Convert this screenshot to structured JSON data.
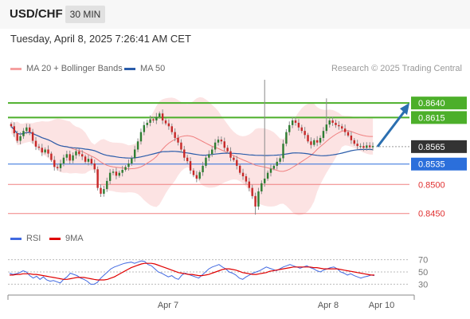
{
  "header": {
    "symbol": "USD/CHF",
    "timeframe": "30 MIN"
  },
  "datetime": "Tuesday, April 8, 2025 7:26:41 AM CET",
  "legend": {
    "ma20": {
      "label": "MA 20 + Bollinger Bands",
      "color": "#f08080"
    },
    "ma50": {
      "label": "MA 50",
      "color": "#2a5caa"
    },
    "rsi": {
      "label": "RSI",
      "color": "#4169e1"
    },
    "ma9": {
      "label": "9MA",
      "color": "#e00000"
    }
  },
  "credit": "Research © 2025 Trading Central",
  "chart_data": [
    {
      "type": "candlestick",
      "ylim": [
        0.844,
        0.868
      ],
      "x_labels": [
        "Apr 7",
        "Apr 8",
        "Apr 10"
      ],
      "levels": [
        {
          "value": 0.864,
          "label": "0.8640",
          "color": "#4caf2a",
          "kind": "resistance"
        },
        {
          "value": 0.8615,
          "label": "0.8615",
          "color": "#4caf2a",
          "kind": "resistance"
        },
        {
          "value": 0.8565,
          "label": "0.8565",
          "color": "#333333",
          "kind": "current"
        },
        {
          "value": 0.8535,
          "label": "0.8535",
          "color": "#2b6fdb",
          "kind": "pivot"
        },
        {
          "value": 0.85,
          "label": "0.8500",
          "color": "#e03030",
          "kind": "support"
        },
        {
          "value": 0.845,
          "label": "0.8450",
          "color": "#e03030",
          "kind": "support"
        }
      ],
      "projection": {
        "from": 0.8565,
        "to": 0.864
      },
      "close": [
        0.86,
        0.8588,
        0.8575,
        0.8583,
        0.8592,
        0.8598,
        0.859,
        0.8575,
        0.8565,
        0.8563,
        0.8555,
        0.856,
        0.8553,
        0.8542,
        0.853,
        0.8528,
        0.8536,
        0.8546,
        0.8552,
        0.8541,
        0.855,
        0.8557,
        0.8552,
        0.8548,
        0.8539,
        0.8544,
        0.8536,
        0.8526,
        0.8494,
        0.8484,
        0.8492,
        0.8506,
        0.852,
        0.8522,
        0.8515,
        0.852,
        0.8525,
        0.853,
        0.8536,
        0.8545,
        0.856,
        0.8574,
        0.859,
        0.8602,
        0.8606,
        0.8612,
        0.861,
        0.8616,
        0.8622,
        0.861,
        0.8605,
        0.86,
        0.859,
        0.858,
        0.8572,
        0.856,
        0.8546,
        0.854,
        0.8524,
        0.8516,
        0.851,
        0.8521,
        0.8532,
        0.8546,
        0.8552,
        0.856,
        0.8572,
        0.8577,
        0.8574,
        0.8563,
        0.8557,
        0.8546,
        0.8542,
        0.8532,
        0.852,
        0.8514,
        0.8505,
        0.8494,
        0.848,
        0.8462,
        0.8488,
        0.8502,
        0.851,
        0.852,
        0.8527,
        0.8532,
        0.8539,
        0.8545,
        0.857,
        0.859,
        0.8602,
        0.861,
        0.8606,
        0.8598,
        0.8592,
        0.8585,
        0.8574,
        0.8568,
        0.8576,
        0.8572,
        0.858,
        0.8592,
        0.8603,
        0.861,
        0.8606,
        0.8602,
        0.86,
        0.8596,
        0.859,
        0.8584,
        0.8576,
        0.857,
        0.8566,
        0.8566,
        0.8563,
        0.8567,
        0.8564,
        0.8566
      ]
    },
    {
      "type": "line",
      "ylim": [
        15,
        85
      ],
      "levels": [
        70,
        50,
        30
      ],
      "series": [
        {
          "name": "RSI",
          "values": [
            48,
            46,
            47,
            49,
            52,
            50,
            44,
            40,
            43,
            38,
            42,
            37,
            35,
            36,
            34,
            32,
            38,
            42,
            48,
            46,
            44,
            40,
            38,
            35,
            30,
            30,
            33,
            40,
            45,
            50,
            55,
            58,
            60,
            62,
            64,
            65,
            66,
            64,
            66,
            68,
            67,
            62,
            60,
            55,
            50,
            48,
            45,
            42,
            44,
            40,
            38,
            45,
            48,
            46,
            44,
            42,
            40,
            45,
            50,
            55,
            58,
            60,
            62,
            58,
            55,
            50,
            48,
            45,
            40,
            38,
            42,
            45,
            48,
            50,
            52,
            55,
            58,
            56,
            54,
            52,
            55,
            58,
            60,
            62,
            60,
            58,
            56,
            58,
            60,
            57,
            55,
            52,
            50,
            53,
            55,
            57,
            58,
            55,
            50,
            48,
            45,
            47,
            44,
            42,
            40,
            42,
            43,
            45,
            44
          ]
        },
        {
          "name": "9MA",
          "values": [
            45,
            45,
            46,
            46,
            47,
            47,
            47,
            46,
            46,
            45,
            44,
            43,
            42,
            41,
            40,
            39,
            38,
            38,
            39,
            40,
            41,
            41,
            41,
            40,
            39,
            38,
            37,
            37,
            37,
            38,
            40,
            42,
            45,
            48,
            51,
            54,
            57,
            59,
            61,
            63,
            64,
            64,
            64,
            63,
            61,
            59,
            57,
            55,
            53,
            51,
            49,
            48,
            47,
            46,
            46,
            45,
            44,
            44,
            45,
            46,
            48,
            50,
            52,
            54,
            55,
            55,
            54,
            53,
            51,
            49,
            48,
            47,
            46,
            46,
            47,
            48,
            49,
            51,
            52,
            53,
            54,
            55,
            56,
            57,
            58,
            58,
            58,
            58,
            58,
            58,
            57,
            57,
            56,
            55,
            55,
            55,
            55,
            55,
            54,
            53,
            52,
            51,
            50,
            49,
            48,
            47,
            46,
            45,
            45
          ]
        }
      ]
    }
  ]
}
